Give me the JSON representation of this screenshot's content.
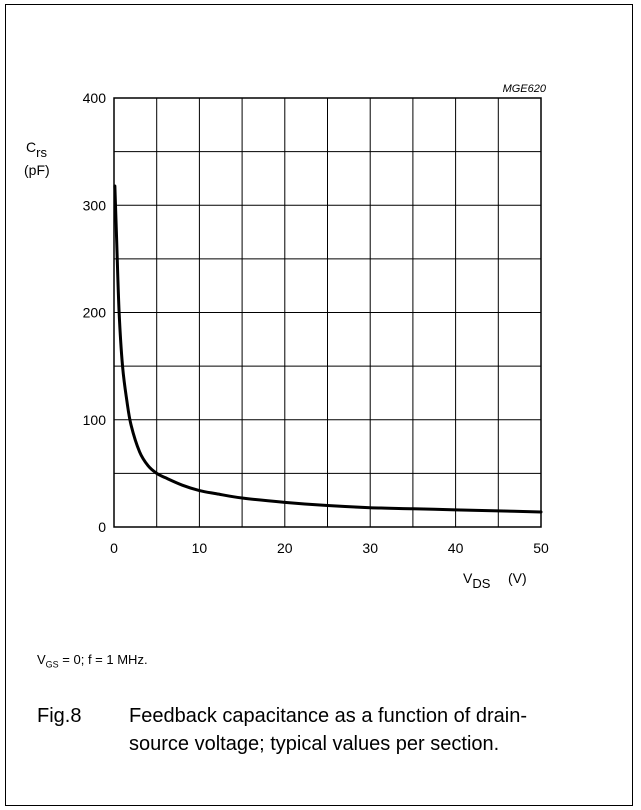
{
  "chart_data": {
    "type": "line",
    "watermark": "MGE620",
    "ylabel_main": "C",
    "ylabel_sub": "rs",
    "ylabel_unit": "(pF)",
    "xlabel_main": "V",
    "xlabel_sub": "DS",
    "xlabel_unit": "(V)",
    "xlim": [
      0,
      50
    ],
    "ylim": [
      0,
      400
    ],
    "x_ticks": [
      0,
      10,
      20,
      30,
      40,
      50
    ],
    "y_ticks": [
      0,
      100,
      200,
      300,
      400
    ],
    "grid": true,
    "x_grid_step": 5,
    "y_grid_step": 50,
    "color": "#000000",
    "series": [
      {
        "x": [
          0.1,
          0.3,
          0.6,
          1,
          1.5,
          2,
          3,
          4,
          5,
          6,
          8,
          10,
          12,
          15,
          20,
          25,
          30,
          35,
          40,
          45,
          50
        ],
        "y": [
          318,
          270,
          200,
          150,
          118,
          95,
          70,
          57,
          50,
          46,
          39,
          34,
          31,
          27,
          23,
          20,
          18,
          17,
          16,
          15,
          14
        ]
      }
    ]
  },
  "note": {
    "prefix": "V",
    "sub": "GS",
    "text": " = 0; f = 1 MHz."
  },
  "caption": {
    "fig": "Fig.8",
    "text": "Feedback capacitance as a function of drain-source voltage; typical values per section."
  }
}
